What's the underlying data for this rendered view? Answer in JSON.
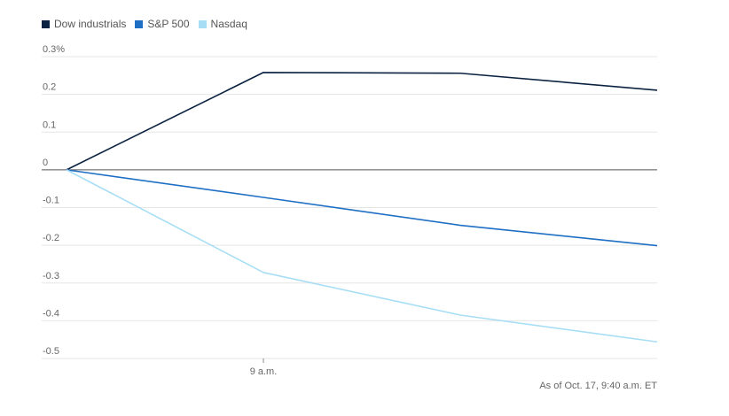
{
  "legend": [
    {
      "name": "Dow industrials",
      "color": "#0b2341"
    },
    {
      "name": "S&P 500",
      "color": "#1f6fc5"
    },
    {
      "name": "Nasdaq",
      "color": "#a8def5"
    }
  ],
  "footnote": "As of Oct. 17, 9:40 a.m. ET",
  "chart_data": {
    "type": "line",
    "x": [
      0,
      1,
      2,
      3
    ],
    "x_tick_labels": [
      {
        "x": 1,
        "label": "9 a.m."
      }
    ],
    "y_ticks": [
      0.3,
      0.2,
      0.1,
      0,
      -0.1,
      -0.2,
      -0.3,
      -0.4,
      -0.5
    ],
    "y_tick_labels": [
      "0.3%",
      "0.2",
      "0.1",
      "0",
      "-0.1",
      "-0.2",
      "-0.3",
      "-0.4",
      "-0.5"
    ],
    "ylim": [
      -0.5,
      0.3
    ],
    "xlim": [
      0,
      3
    ],
    "grid": true,
    "legend_position": "top-left",
    "series": [
      {
        "name": "Dow industrials",
        "color": "#0b2341",
        "values": [
          0,
          0.258,
          0.256,
          0.211
        ]
      },
      {
        "name": "S&P 500",
        "color": "#1f6fc5",
        "values": [
          0,
          -0.073,
          -0.147,
          -0.201
        ]
      },
      {
        "name": "Nasdaq",
        "color": "#a8def5",
        "values": [
          0,
          -0.272,
          -0.385,
          -0.456
        ]
      }
    ]
  }
}
